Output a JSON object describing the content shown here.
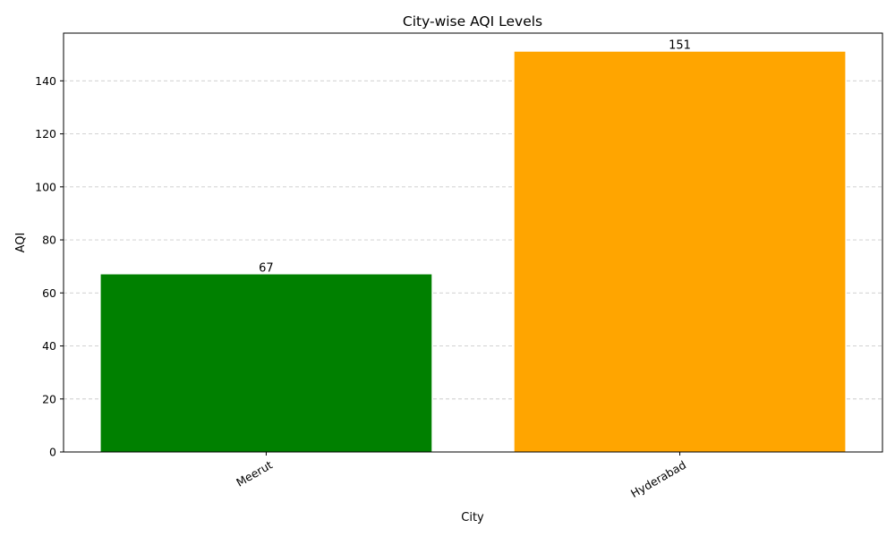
{
  "chart_data": {
    "type": "bar",
    "title": "City-wise AQI Levels",
    "xlabel": "City",
    "ylabel": "AQI",
    "categories": [
      "Meerut",
      "Hyderabad"
    ],
    "values": [
      67,
      151
    ],
    "colors": [
      "#008000",
      "#ffa500"
    ],
    "data_labels": [
      "67",
      "151"
    ],
    "ylim": [
      0,
      158
    ],
    "yticks": [
      0,
      20,
      40,
      60,
      80,
      100,
      120,
      140
    ],
    "grid": "y-dashed",
    "x_tick_rotation": "30deg"
  }
}
